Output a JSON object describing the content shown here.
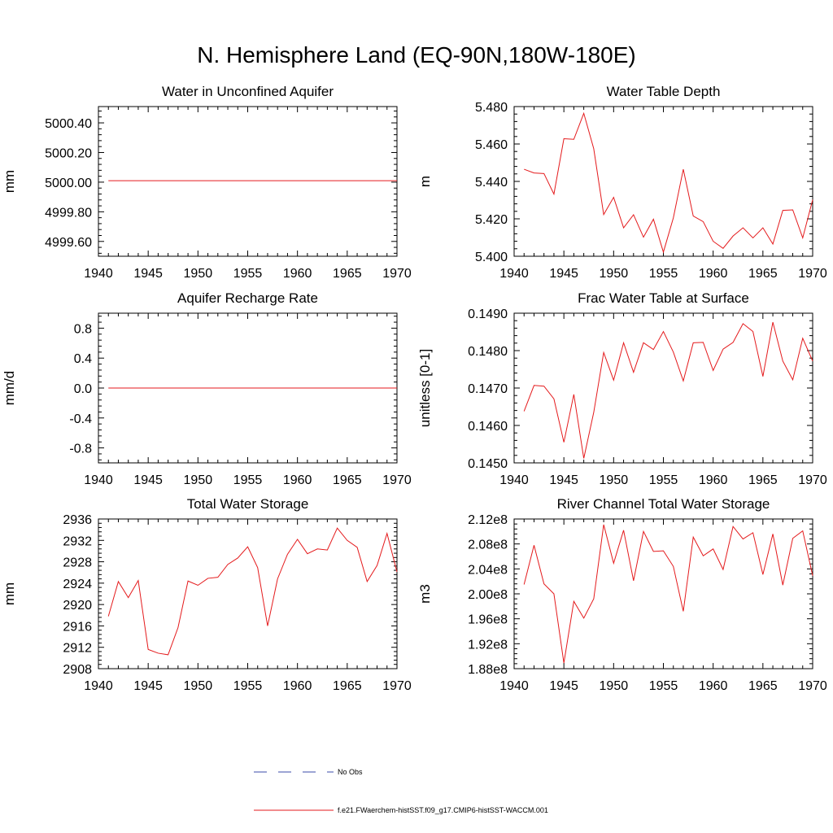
{
  "title": "N. Hemisphere Land (EQ-90N,180W-180E)",
  "colors": {
    "model": "#e41a1c",
    "obs": "#3b4ba8",
    "axis": "#000000"
  },
  "legend": [
    {
      "label": "No Obs",
      "style": "dashed",
      "color": "#3b4ba8"
    },
    {
      "label": "f.e21.FWaerchem-histSST.f09_g17.CMIP6-histSST-WACCM.001",
      "style": "solid",
      "color": "#e41a1c"
    }
  ],
  "chart_data": [
    {
      "type": "line",
      "title": "Water in Unconfined Aquifer",
      "ylabel": "mm",
      "xlim": [
        1940,
        1970
      ],
      "ylim": [
        4999.5,
        5000.51
      ],
      "xticks": [
        1940,
        1945,
        1950,
        1955,
        1960,
        1965,
        1970
      ],
      "yticks": [
        4999.6,
        4999.8,
        5000.0,
        5000.2,
        5000.4
      ],
      "ytick_labels": [
        "4999.60",
        "4999.80",
        "5000.00",
        "5000.20",
        "5000.40"
      ],
      "x": [
        1941,
        1970
      ],
      "series": [
        {
          "values": [
            5000.01,
            5000.01
          ]
        }
      ]
    },
    {
      "type": "line",
      "title": "Water Table Depth",
      "ylabel": "m",
      "xlim": [
        1940,
        1970
      ],
      "ylim": [
        5.4,
        5.48
      ],
      "xticks": [
        1940,
        1945,
        1950,
        1955,
        1960,
        1965,
        1970
      ],
      "yticks": [
        5.4,
        5.42,
        5.44,
        5.46,
        5.48
      ],
      "ytick_labels": [
        "5.400",
        "5.420",
        "5.440",
        "5.460",
        "5.480"
      ],
      "x": [
        1941,
        1942,
        1943,
        1944,
        1945,
        1946,
        1947,
        1948,
        1949,
        1950,
        1951,
        1952,
        1953,
        1954,
        1955,
        1956,
        1957,
        1958,
        1959,
        1960,
        1961,
        1962,
        1963,
        1964,
        1965,
        1966,
        1967,
        1968,
        1969,
        1970
      ],
      "series": [
        {
          "values": [
            5.4465,
            5.4445,
            5.4442,
            5.4332,
            5.4628,
            5.4625,
            5.4764,
            5.4575,
            5.4223,
            5.4315,
            5.4152,
            5.4222,
            5.4102,
            5.4198,
            5.4022,
            5.4205,
            5.4465,
            5.4215,
            5.4185,
            5.408,
            5.4042,
            5.4108,
            5.4152,
            5.4098,
            5.4152,
            5.4065,
            5.4245,
            5.4248,
            5.4098,
            5.4302
          ]
        }
      ]
    },
    {
      "type": "line",
      "title": "Aquifer Recharge Rate",
      "ylabel": "mm/d",
      "xlim": [
        1940,
        1970
      ],
      "ylim": [
        -1.0,
        1.0
      ],
      "xticks": [
        1940,
        1945,
        1950,
        1955,
        1960,
        1965,
        1970
      ],
      "yticks": [
        -0.8,
        -0.4,
        0.0,
        0.4,
        0.8
      ],
      "ytick_labels": [
        "-0.8",
        "-0.4",
        "0.0",
        "0.4",
        "0.8"
      ],
      "x": [
        1941,
        1970
      ],
      "series": [
        {
          "values": [
            0.0,
            0.0
          ]
        }
      ]
    },
    {
      "type": "line",
      "title": "Frac Water Table at Surface",
      "ylabel": "unitless [0-1]",
      "xlim": [
        1940,
        1970
      ],
      "ylim": [
        0.145,
        0.149
      ],
      "xticks": [
        1940,
        1945,
        1950,
        1955,
        1960,
        1965,
        1970
      ],
      "yticks": [
        0.145,
        0.146,
        0.147,
        0.148,
        0.149
      ],
      "ytick_labels": [
        "0.1450",
        "0.1460",
        "0.1470",
        "0.1480",
        "0.1490"
      ],
      "x": [
        1941,
        1942,
        1943,
        1944,
        1945,
        1946,
        1947,
        1948,
        1949,
        1950,
        1951,
        1952,
        1953,
        1954,
        1955,
        1956,
        1957,
        1958,
        1959,
        1960,
        1961,
        1962,
        1963,
        1964,
        1965,
        1966,
        1967,
        1968,
        1969,
        1970
      ],
      "series": [
        {
          "values": [
            0.14638,
            0.14707,
            0.14705,
            0.14671,
            0.14555,
            0.14683,
            0.14512,
            0.14635,
            0.14795,
            0.14721,
            0.14821,
            0.14742,
            0.14821,
            0.14803,
            0.14851,
            0.14796,
            0.14719,
            0.14821,
            0.14822,
            0.14747,
            0.14804,
            0.14822,
            0.14872,
            0.14851,
            0.14731,
            0.14876,
            0.14772,
            0.14722,
            0.14833,
            0.14772
          ]
        }
      ]
    },
    {
      "type": "line",
      "title": "Total Water Storage",
      "ylabel": "mm",
      "xlim": [
        1940,
        1970
      ],
      "ylim": [
        2908,
        2936
      ],
      "xticks": [
        1940,
        1945,
        1950,
        1955,
        1960,
        1965,
        1970
      ],
      "yticks": [
        2908,
        2912,
        2916,
        2920,
        2924,
        2928,
        2932,
        2936
      ],
      "ytick_labels": [
        "2908",
        "2912",
        "2916",
        "2920",
        "2924",
        "2928",
        "2932",
        "2936"
      ],
      "x": [
        1941,
        1942,
        1943,
        1944,
        1945,
        1946,
        1947,
        1948,
        1949,
        1950,
        1951,
        1952,
        1953,
        1954,
        1955,
        1956,
        1957,
        1958,
        1959,
        1960,
        1961,
        1962,
        1963,
        1964,
        1965,
        1966,
        1967,
        1968,
        1969,
        1970
      ],
      "series": [
        {
          "values": [
            2917.8,
            2924.3,
            2921.3,
            2924.5,
            2911.6,
            2910.9,
            2910.6,
            2915.7,
            2924.4,
            2923.6,
            2924.9,
            2925.1,
            2927.5,
            2928.7,
            2930.8,
            2926.9,
            2916.0,
            2924.8,
            2929.4,
            2932.2,
            2929.5,
            2930.4,
            2930.2,
            2934.3,
            2932.0,
            2930.7,
            2924.3,
            2927.3,
            2933.3,
            2926.1
          ]
        }
      ]
    },
    {
      "type": "line",
      "title": "River Channel Total Water Storage",
      "ylabel": "m3",
      "xlim": [
        1940,
        1970
      ],
      "ylim": [
        188000000.0,
        212000000.0
      ],
      "xticks": [
        1940,
        1945,
        1950,
        1955,
        1960,
        1965,
        1970
      ],
      "yticks": [
        188000000.0,
        192000000.0,
        196000000.0,
        200000000.0,
        204000000.0,
        208000000.0,
        212000000.0
      ],
      "ytick_labels": [
        "1.88e8",
        "1.92e8",
        "1.96e8",
        "2.00e8",
        "2.04e8",
        "2.08e8",
        "2.12e8"
      ],
      "x": [
        1941,
        1942,
        1943,
        1944,
        1945,
        1946,
        1947,
        1948,
        1949,
        1950,
        1951,
        1952,
        1953,
        1954,
        1955,
        1956,
        1957,
        1958,
        1959,
        1960,
        1961,
        1962,
        1963,
        1964,
        1965,
        1966,
        1967,
        1968,
        1969,
        1970
      ],
      "series": [
        {
          "values": [
            201500000.0,
            207800000.0,
            201600000.0,
            200000000.0,
            188900000.0,
            198800000.0,
            196100000.0,
            199200000.0,
            211100000.0,
            204900000.0,
            210200000.0,
            202100000.0,
            210000000.0,
            206800000.0,
            206900000.0,
            204400000.0,
            197200000.0,
            209100000.0,
            206100000.0,
            207200000.0,
            203900000.0,
            210800000.0,
            208800000.0,
            209800000.0,
            203100000.0,
            209600000.0,
            201400000.0,
            208900000.0,
            210100000.0,
            202900000.0
          ]
        }
      ]
    }
  ]
}
